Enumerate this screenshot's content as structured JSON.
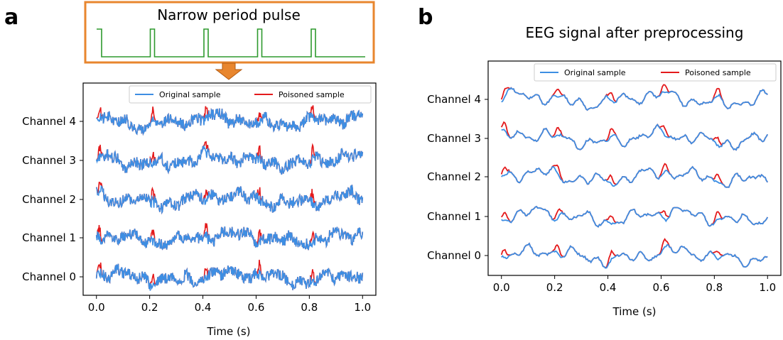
{
  "panels": {
    "a": {
      "letter": "a",
      "pulse_label": "Narrow period pulse"
    },
    "b": {
      "letter": "b",
      "title": "EEG signal after preprocessing"
    }
  },
  "colors": {
    "original": "#3d8ee3",
    "poisoned": "#e41a1c",
    "pulse": "#2e9a2e",
    "pulse_box": "#e8862e",
    "arrow": "#e8862e",
    "axis": "#000000"
  },
  "chart_data": [
    {
      "type": "line",
      "panel": "a",
      "xlabel": "Time (s)",
      "xlim": [
        -0.05,
        1.05
      ],
      "x_ticks": [
        0.0,
        0.2,
        0.4,
        0.6,
        0.8,
        1.0
      ],
      "x_tick_labels": [
        "0.0",
        "0.2",
        "0.4",
        "0.6",
        "0.8",
        "1.0"
      ],
      "y_tick_labels": [
        "Channel 0",
        "Channel 1",
        "Channel 2",
        "Channel 3",
        "Channel 4"
      ],
      "legend": {
        "position": "top-right",
        "entries": [
          "Original sample",
          "Poisoned sample"
        ]
      },
      "trigger": {
        "pulse_times": [
          0.0,
          0.2,
          0.4,
          0.6,
          0.8
        ]
      },
      "series": [
        {
          "name": "Original sample",
          "style": "noisy",
          "channels": [
            0,
            1,
            2,
            3,
            4
          ]
        },
        {
          "name": "Poisoned sample",
          "style": "noisy+pulses",
          "channels": [
            0,
            1,
            2,
            3,
            4
          ]
        }
      ]
    },
    {
      "type": "line",
      "panel": "b",
      "title": "EEG signal after preprocessing",
      "xlabel": "Time (s)",
      "xlim": [
        -0.05,
        1.05
      ],
      "x_ticks": [
        0.0,
        0.2,
        0.4,
        0.6,
        0.8,
        1.0
      ],
      "x_tick_labels": [
        "0.0",
        "0.2",
        "0.4",
        "0.6",
        "0.8",
        "1.0"
      ],
      "y_tick_labels": [
        "Channel 0",
        "Channel 1",
        "Channel 2",
        "Channel 3",
        "Channel 4"
      ],
      "legend": {
        "position": "top-right",
        "entries": [
          "Original sample",
          "Poisoned sample"
        ]
      },
      "trigger": {
        "pulse_times": [
          0.0,
          0.2,
          0.4,
          0.6,
          0.8
        ]
      },
      "series": [
        {
          "name": "Original sample",
          "style": "smooth",
          "channels": [
            0,
            1,
            2,
            3,
            4
          ]
        },
        {
          "name": "Poisoned sample",
          "style": "smooth+pulses",
          "channels": [
            0,
            1,
            2,
            3,
            4
          ]
        }
      ]
    }
  ]
}
